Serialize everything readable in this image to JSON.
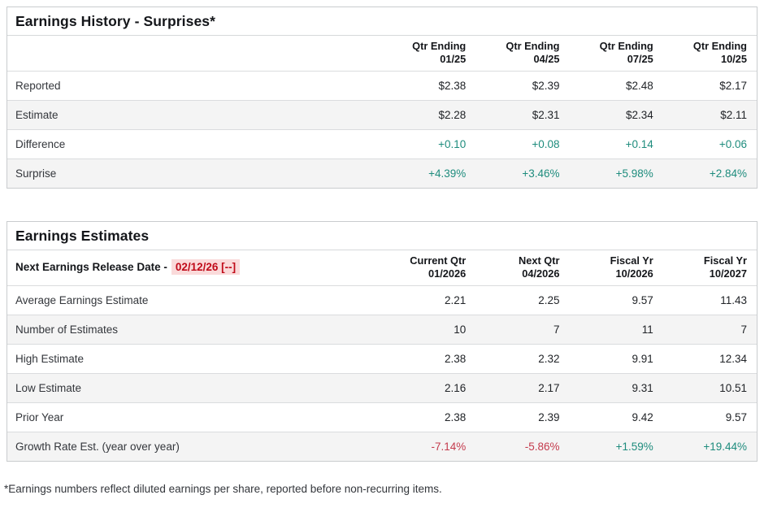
{
  "colors": {
    "positive_value": "#1e8c7d",
    "negative_value": "#c43b4d",
    "release_date_text": "#c00a19",
    "release_date_bg": "#fadada",
    "alt_row_bg": "#f4f4f4",
    "border": "#c9ccce"
  },
  "history": {
    "title": "Earnings History - Surprises*",
    "columns": [
      {
        "line1": "Qtr Ending",
        "line2": "01/25"
      },
      {
        "line1": "Qtr Ending",
        "line2": "04/25"
      },
      {
        "line1": "Qtr Ending",
        "line2": "07/25"
      },
      {
        "line1": "Qtr Ending",
        "line2": "10/25"
      }
    ],
    "rows": [
      {
        "label": "Reported",
        "values": [
          "$2.38",
          "$2.39",
          "$2.48",
          "$2.17"
        ]
      },
      {
        "label": "Estimate",
        "values": [
          "$2.28",
          "$2.31",
          "$2.34",
          "$2.11"
        ]
      },
      {
        "label": "Difference",
        "values": [
          "+0.10",
          "+0.08",
          "+0.14",
          "+0.06"
        ]
      },
      {
        "label": "Surprise",
        "values": [
          "+4.39%",
          "+3.46%",
          "+5.98%",
          "+2.84%"
        ]
      }
    ]
  },
  "estimates": {
    "title": "Earnings Estimates",
    "release_date_label": "Next Earnings Release Date -",
    "release_date_value": "02/12/26 [--]",
    "columns": [
      {
        "line1": "Current Qtr",
        "line2": "01/2026"
      },
      {
        "line1": "Next Qtr",
        "line2": "04/2026"
      },
      {
        "line1": "Fiscal Yr",
        "line2": "10/2026"
      },
      {
        "line1": "Fiscal Yr",
        "line2": "10/2027"
      }
    ],
    "rows": [
      {
        "label": "Average Earnings Estimate",
        "values": [
          "2.21",
          "2.25",
          "9.57",
          "11.43"
        ]
      },
      {
        "label": "Number of Estimates",
        "values": [
          "10",
          "7",
          "11",
          "7"
        ]
      },
      {
        "label": "High Estimate",
        "values": [
          "2.38",
          "2.32",
          "9.91",
          "12.34"
        ]
      },
      {
        "label": "Low Estimate",
        "values": [
          "2.16",
          "2.17",
          "9.31",
          "10.51"
        ]
      },
      {
        "label": "Prior Year",
        "values": [
          "2.38",
          "2.39",
          "9.42",
          "9.57"
        ]
      },
      {
        "label": "Growth Rate Est. (year over year)",
        "values": [
          "-7.14%",
          "-5.86%",
          "+1.59%",
          "+19.44%"
        ]
      }
    ]
  },
  "footnote": "*Earnings numbers reflect diluted earnings per share, reported before non-recurring items."
}
